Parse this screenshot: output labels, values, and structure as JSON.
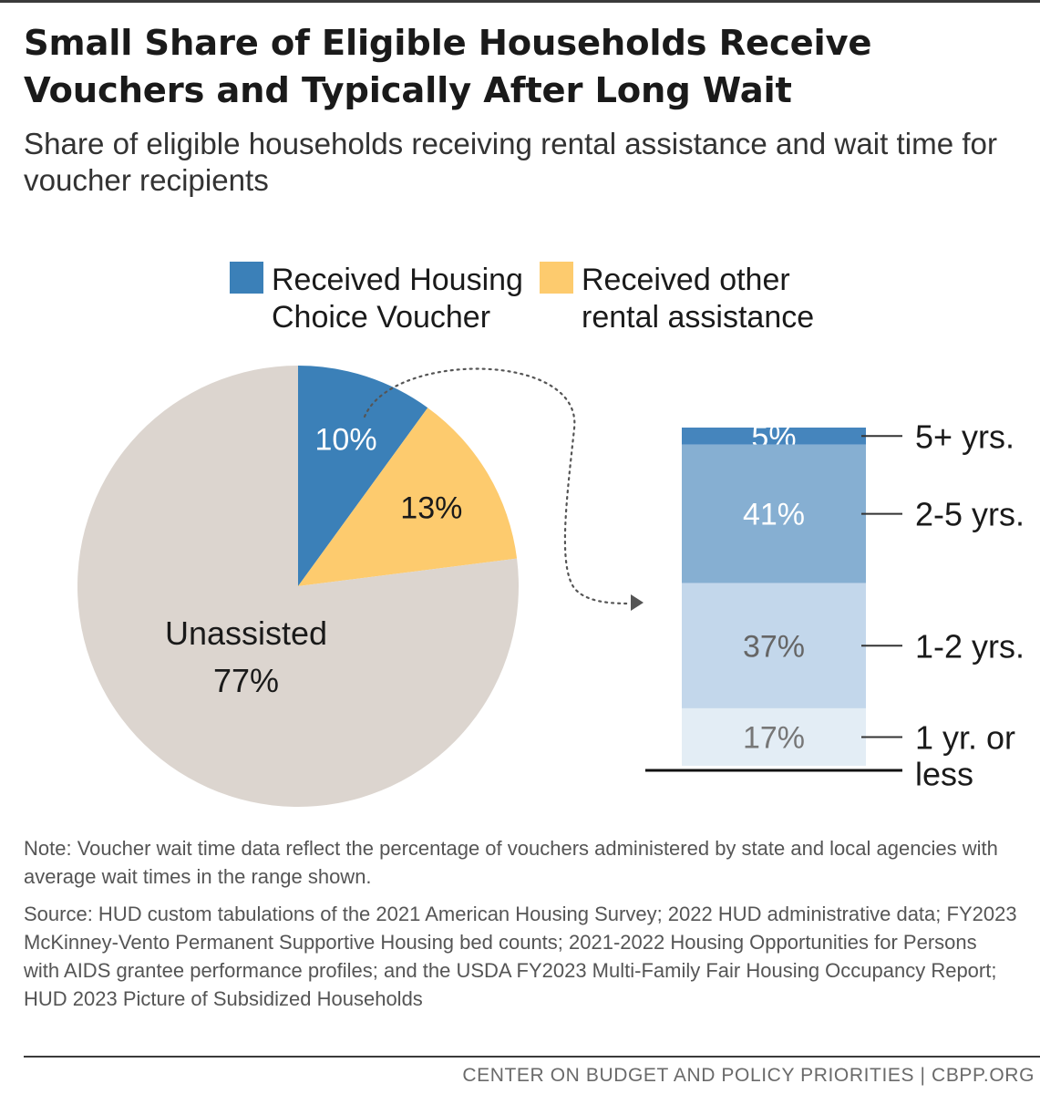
{
  "header": {
    "title_line1": "Small Share of Eligible Households Receive",
    "title_line2": "Vouchers and Typically After Long Wait",
    "subtitle_line1": "Share of eligible households receiving rental assistance and wait time for",
    "subtitle_line2": "voucher recipients"
  },
  "chart_data": [
    {
      "type": "pie",
      "title": "Share of eligible households receiving rental assistance",
      "slices": [
        {
          "name": "Received Housing Choice Voucher",
          "value": 10,
          "label": "10%",
          "color": "#3b80b8"
        },
        {
          "name": "Received other rental assistance",
          "value": 13,
          "label": "13%",
          "color": "#fdcb6e"
        },
        {
          "name": "Unassisted",
          "value": 77,
          "label": "77%",
          "label_name": "Unassisted",
          "color": "#dcd5cf"
        }
      ],
      "legend": [
        {
          "line1": "Received Housing",
          "line2": "Choice Voucher",
          "color": "#3b80b8"
        },
        {
          "line1": "Received other",
          "line2": "rental assistance",
          "color": "#fdcb6e"
        }
      ],
      "legend_position": "top"
    },
    {
      "type": "bar",
      "stacked": true,
      "title": "Wait time for voucher recipients",
      "segments": [
        {
          "category_line1": "5+ yrs.",
          "category_line2": "",
          "value": 5,
          "label": "5%",
          "color": "#4585bd",
          "text_color": "#ffffff"
        },
        {
          "category_line1": "2-5 yrs.",
          "category_line2": "",
          "value": 41,
          "label": "41%",
          "color": "#86afd2",
          "text_color": "#ffffff"
        },
        {
          "category_line1": "1-2 yrs.",
          "category_line2": "",
          "value": 37,
          "label": "37%",
          "color": "#c3d7eb",
          "text_color": "#666666"
        },
        {
          "category_line1": "1 yr. or",
          "category_line2": "less",
          "value": 17,
          "label": "17%",
          "color": "#e3edf5",
          "text_color": "#777777"
        }
      ],
      "ylim": [
        0,
        100
      ]
    }
  ],
  "notes": {
    "note": "Note: Voucher wait time data reflect the percentage of vouchers administered by state and local agencies with average wait times in the range shown.",
    "source": "Source: HUD custom tabulations of the 2021 American Housing Survey; 2022 HUD administrative data; FY2023 McKinney-Vento Permanent Supportive Housing bed counts; 2021-2022 Housing Opportunities for Persons with AIDS grantee performance profiles; and the USDA FY2023 Multi-Family Fair Housing Occupancy Report; HUD 2023 Picture of Subsidized Households"
  },
  "footer": {
    "credit": "CENTER ON BUDGET AND POLICY PRIORITIES | CBPP.ORG"
  }
}
